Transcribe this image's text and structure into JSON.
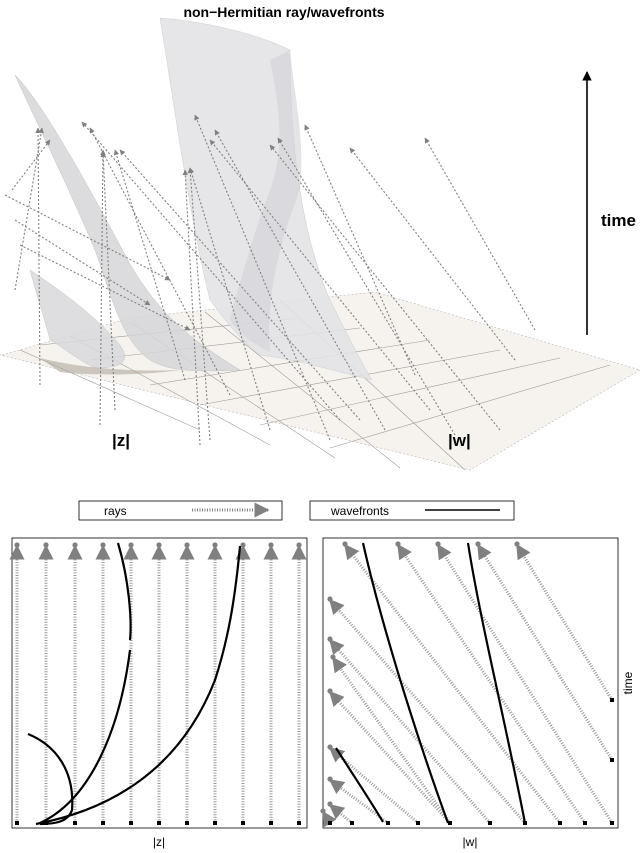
{
  "title": "non−Hermitian ray/wavefronts",
  "top_panel": {
    "z_label": "|z|",
    "w_label": "|w|",
    "time_label": "time"
  },
  "legend": {
    "rays": "rays",
    "wavefronts": "wavefronts"
  },
  "bottom_left": {
    "xlabel": "|z|"
  },
  "bottom_right": {
    "xlabel": "|w|",
    "ylabel": "time"
  },
  "colors": {
    "ray": "#808080",
    "wavefront": "#000000",
    "surface": "#e2e2e6",
    "plane": "#f6f3ef"
  }
}
